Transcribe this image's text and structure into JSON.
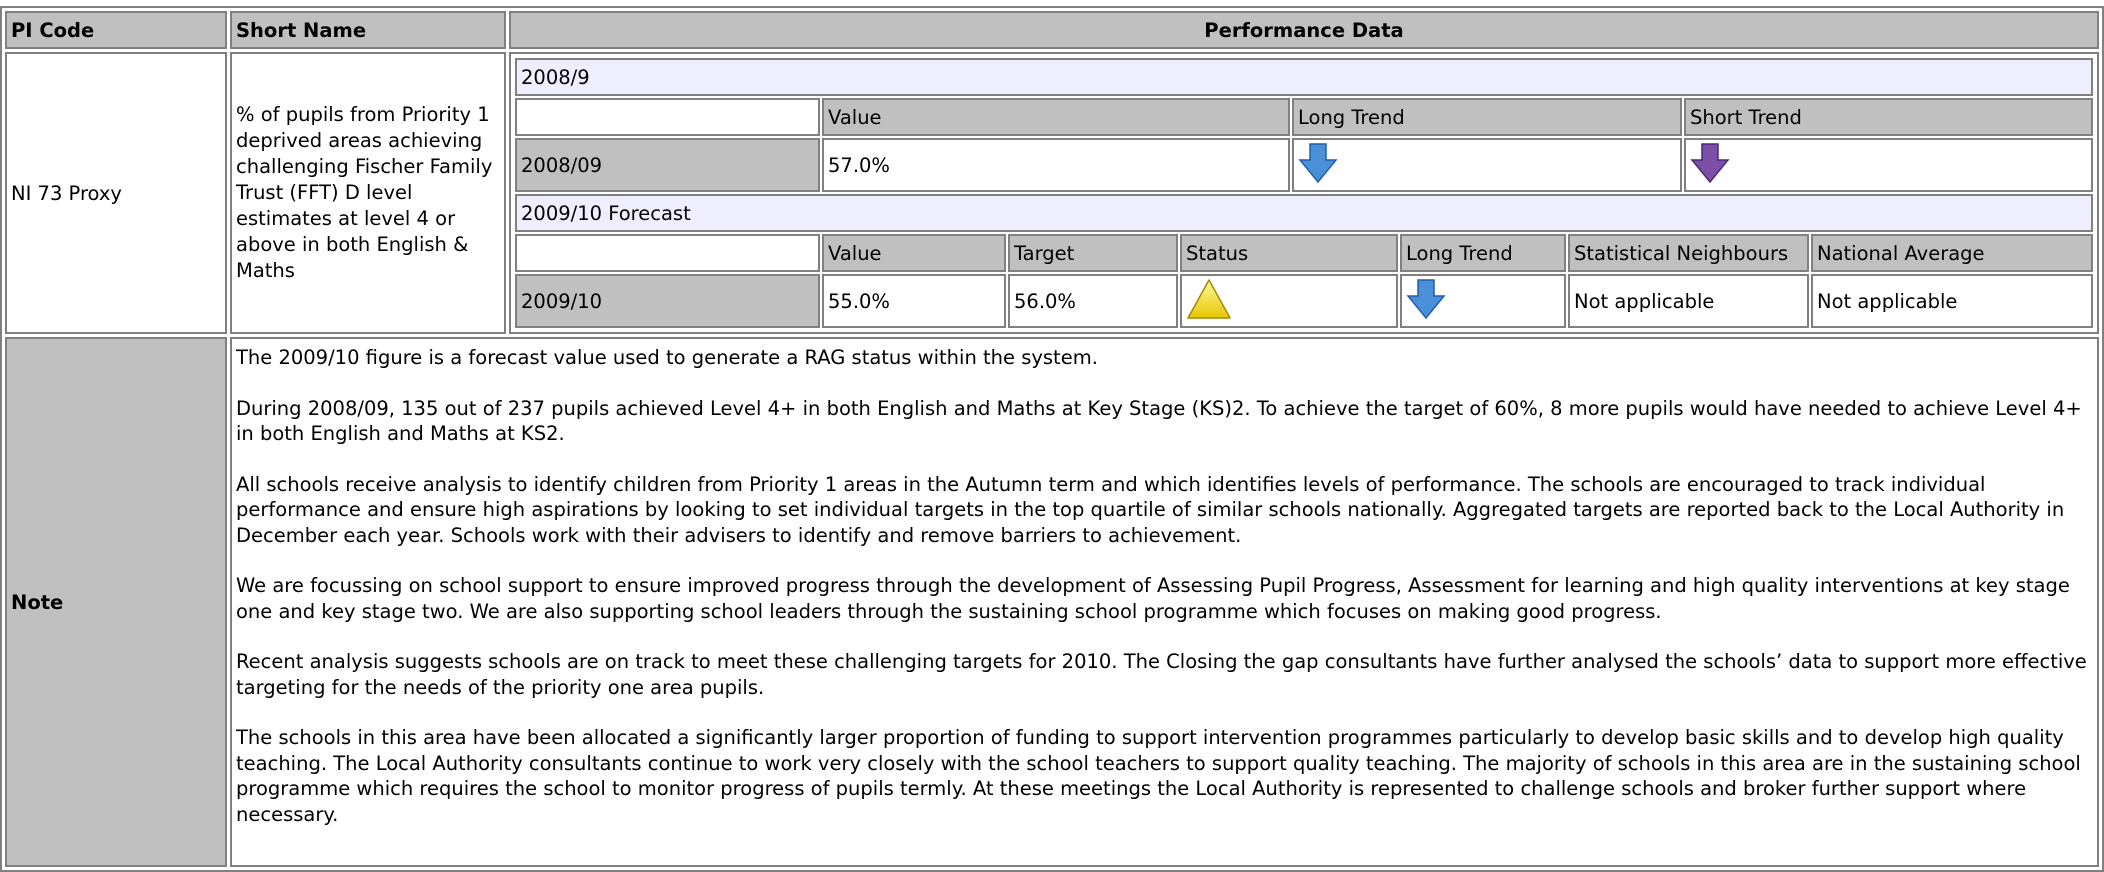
{
  "header": {
    "pi_code": "PI Code",
    "short_name": "Short Name",
    "performance_data": "Performance Data"
  },
  "row": {
    "pi_code": "NI 73 Proxy",
    "short_name": "% of pupils from Priority 1 deprived areas achieving challenging Fischer Family Trust (FFT) D level estimates at level 4 or above in both English &  Maths",
    "note_label": "Note"
  },
  "performance": {
    "actual": {
      "period": "2008/9",
      "columns": [
        "Value",
        "Long Trend",
        "Short Trend"
      ],
      "year": "2008/09",
      "value": "57.0%"
    },
    "forecast": {
      "period": "2009/10 Forecast",
      "columns": [
        "Value",
        "Target",
        "Status",
        "Long Trend",
        "Statistical Neighbours",
        "National Average"
      ],
      "year": "2009/10",
      "value": "55.0%",
      "target": "56.0%",
      "statistical_neighbours": "Not applicable",
      "national_average": "Not applicable"
    }
  },
  "note": {
    "paragraphs": [
      "The 2009/10 figure is a forecast value used to generate a RAG status within the system.",
      "During 2008/09, 135 out of 237 pupils achieved Level 4+ in both English and Maths at Key Stage (KS)2. To achieve the target of 60%, 8 more pupils would have needed to achieve Level 4+ in both English and Maths at KS2.",
      "All schools receive analysis to identify children from Priority 1 areas in the Autumn term and which identifies levels of performance. The schools are encouraged to track individual performance and ensure high aspirations by looking to set individual targets in the top quartile of similar schools nationally. Aggregated targets are reported back to the Local Authority in December each year. Schools work with their advisers to identify and remove barriers to achievement.",
      "We are focussing on school support to ensure improved progress through the development of Assessing Pupil Progress, Assessment for learning and high quality interventions at key stage one and key stage two. We are also supporting school leaders through the sustaining school programme which focuses on making good progress.",
      "Recent analysis suggests schools are on track to meet these challenging targets for 2010. The Closing the gap consultants have further analysed the schools’ data to support more effective targeting for the needs of the priority one area pupils.",
      "The schools in this area have been allocated a significantly larger proportion of funding to support intervention programmes particularly to develop basic skills and to develop high quality teaching. The Local Authority consultants continue to work very closely with the school teachers to support quality teaching. The majority of schools in this area are in the sustaining school programme which requires the school to monitor progress of pupils termly. At these meetings the Local Authority is represented to challenge schools and broker further support where necessary."
    ]
  }
}
